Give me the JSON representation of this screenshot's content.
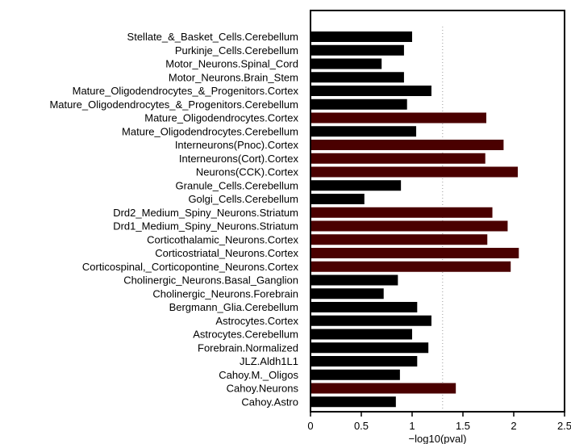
{
  "chart_data": {
    "type": "bar",
    "orientation": "horizontal",
    "title": "",
    "xlabel": "−log10(pval)",
    "ylabel": "",
    "xlim": [
      0,
      2.5
    ],
    "xticks": [
      {
        "value": 0,
        "label": "0"
      },
      {
        "value": 0.5,
        "label": "0.5"
      },
      {
        "value": 1,
        "label": "1"
      },
      {
        "value": 1.5,
        "label": "1.5"
      },
      {
        "value": 2,
        "label": "2"
      },
      {
        "value": 2.5,
        "label": "2.5"
      }
    ],
    "threshold": 1.3,
    "threshold_style": "dotted",
    "grid": false,
    "legend": "none",
    "colors": {
      "significant": "#4a0000",
      "not_significant": "#000000",
      "axis": "#000000",
      "threshold_line": "#9a9a9a"
    },
    "categories": [
      "Stellate_&_Basket_Cells.Cerebellum",
      "Purkinje_Cells.Cerebellum",
      "Motor_Neurons.Spinal_Cord",
      "Motor_Neurons.Brain_Stem",
      "Mature_Oligodendrocytes_&_Progenitors.Cortex",
      "Mature_Oligodendrocytes_&_Progenitors.Cerebellum",
      "Mature_Oligodendrocytes.Cortex",
      "Mature_Oligodendrocytes.Cerebellum",
      "Interneurons(Pnoc).Cortex",
      "Interneurons(Cort).Cortex",
      "Neurons(CCK).Cortex",
      "Granule_Cells.Cerebellum",
      "Golgi_Cells.Cerebellum",
      "Drd2_Medium_Spiny_Neurons.Striatum",
      "Drd1_Medium_Spiny_Neurons.Striatum",
      "Corticothalamic_Neurons.Cortex",
      "Corticostriatal_Neurons.Cortex",
      "Corticospinal,_Corticopontine_Neurons.Cortex",
      "Cholinergic_Neurons.Basal_Ganglion",
      "Cholinergic_Neurons.Forebrain",
      "Bergmann_Glia.Cerebellum",
      "Astrocytes.Cortex",
      "Astrocytes.Cerebellum",
      "Forebrain.Normalized",
      "JLZ.Aldh1L1",
      "Cahoy.M._Oligos",
      "Cahoy.Neurons",
      "Cahoy.Astro"
    ],
    "values": [
      1.0,
      0.92,
      0.7,
      0.92,
      1.19,
      0.95,
      1.73,
      1.04,
      1.9,
      1.72,
      2.04,
      0.89,
      0.53,
      1.79,
      1.94,
      1.74,
      2.05,
      1.97,
      0.86,
      0.72,
      1.05,
      1.19,
      1.0,
      1.16,
      1.05,
      0.88,
      1.43,
      0.84
    ],
    "significant": [
      false,
      false,
      false,
      false,
      false,
      false,
      true,
      false,
      true,
      true,
      true,
      false,
      false,
      true,
      true,
      true,
      true,
      true,
      false,
      false,
      false,
      false,
      false,
      false,
      false,
      false,
      true,
      false
    ]
  }
}
